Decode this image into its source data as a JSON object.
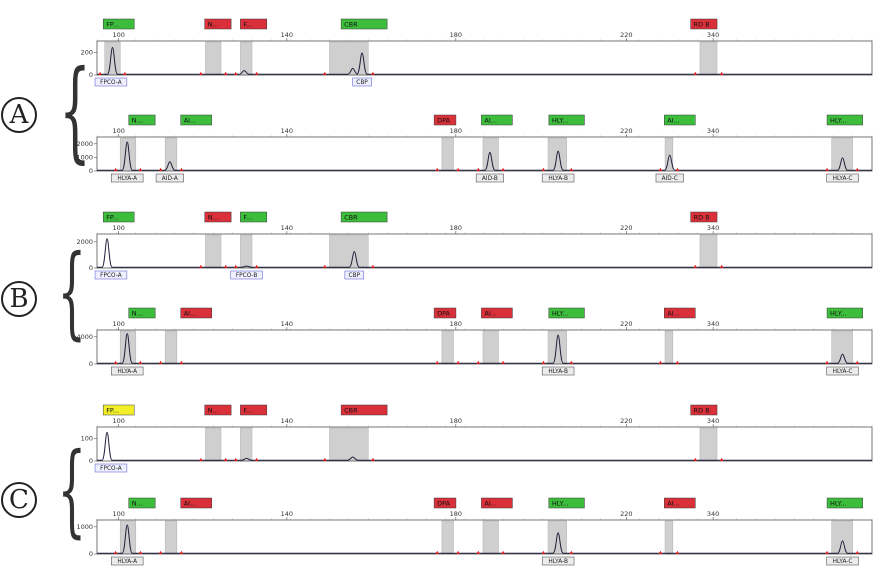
{
  "group_labels": [
    "A",
    "B",
    "C"
  ],
  "axis_ticks": [
    "100",
    "140",
    "180",
    "220",
    "340"
  ],
  "colors": {
    "green": "#3cbd3c",
    "red": "#d9303a",
    "yellow": "#f2ee2a",
    "trace": "#1f1f3a",
    "bin": "#cfcfcf",
    "peak_marker": "#e02020",
    "axis": "#555555"
  },
  "chart_data": [
    {
      "type": "line",
      "group": "A",
      "panel": "upper",
      "x_ticks": [
        "100",
        "140",
        "180",
        "220",
        "340"
      ],
      "y_ticks": [
        "200",
        "0"
      ],
      "ylim": [
        0,
        300
      ],
      "markers": [
        {
          "label": "FP...",
          "color": "green",
          "pos": 0.8
        },
        {
          "label": "N...",
          "color": "red",
          "pos": 13.9
        },
        {
          "label": "F...",
          "color": "red",
          "pos": 18.5
        },
        {
          "label": "CBR",
          "color": "green",
          "pos": 31.5
        },
        {
          "label": "RD B",
          "color": "red",
          "pos": 76.6
        }
      ],
      "bins": [
        [
          1,
          3
        ],
        [
          14,
          16
        ],
        [
          18.5,
          20
        ],
        [
          30,
          35
        ],
        [
          77.8,
          80
        ]
      ],
      "peaks": [
        {
          "pos": 2,
          "height": 250
        },
        {
          "pos": 19,
          "height": 40
        },
        {
          "pos": 33,
          "height": 60
        },
        {
          "pos": 34.2,
          "height": 200
        }
      ],
      "calls": [
        {
          "label": "FPCO-A",
          "pos": 1.8,
          "style": "blue"
        },
        {
          "label": "CBP",
          "pos": 34.2,
          "style": "blue"
        }
      ]
    },
    {
      "type": "line",
      "group": "A",
      "panel": "lower",
      "x_ticks": [
        "100",
        "140",
        "180",
        "220",
        "340"
      ],
      "y_ticks": [
        "2000",
        "1000",
        "0"
      ],
      "ylim": [
        0,
        2500
      ],
      "markers": [
        {
          "label": "N...",
          "color": "green",
          "pos": 4.1
        },
        {
          "label": "AI...",
          "color": "green",
          "pos": 10.8
        },
        {
          "label": "DPA",
          "color": "red",
          "pos": 43.5
        },
        {
          "label": "AI...",
          "color": "green",
          "pos": 49.6
        },
        {
          "label": "HLY...",
          "color": "green",
          "pos": 58.3
        },
        {
          "label": "AI...",
          "color": "green",
          "pos": 73.2
        },
        {
          "label": "HLY...",
          "color": "green",
          "pos": 94.2
        }
      ],
      "bins": [
        [
          3,
          5
        ],
        [
          8.8,
          10.3
        ],
        [
          44.5,
          46
        ],
        [
          49.8,
          51.8
        ],
        [
          58.2,
          60.6
        ],
        [
          73.3,
          74.3
        ],
        [
          94.8,
          97.5
        ]
      ],
      "peaks": [
        {
          "pos": 3.9,
          "height": 2200
        },
        {
          "pos": 9.4,
          "height": 700
        },
        {
          "pos": 50.7,
          "height": 1400
        },
        {
          "pos": 59.5,
          "height": 1500
        },
        {
          "pos": 73.9,
          "height": 1200
        },
        {
          "pos": 96.2,
          "height": 1000
        }
      ],
      "calls": [
        {
          "label": "HLYA-A",
          "pos": 3.9,
          "style": "gray"
        },
        {
          "label": "AID-A",
          "pos": 9.4,
          "style": "gray"
        },
        {
          "label": "AID-B",
          "pos": 50.7,
          "style": "gray"
        },
        {
          "label": "HLYA-B",
          "pos": 59.5,
          "style": "gray"
        },
        {
          "label": "AID-C",
          "pos": 73.9,
          "style": "gray"
        },
        {
          "label": "HLYA-C",
          "pos": 96.2,
          "style": "gray"
        }
      ]
    },
    {
      "type": "line",
      "group": "B",
      "panel": "upper",
      "x_ticks": [
        "100",
        "140",
        "180",
        "220",
        "340"
      ],
      "y_ticks": [
        "2000",
        "0"
      ],
      "ylim": [
        0,
        2600
      ],
      "markers": [
        {
          "label": "FP...",
          "color": "green",
          "pos": 0.8
        },
        {
          "label": "N...",
          "color": "red",
          "pos": 13.9
        },
        {
          "label": "F...",
          "color": "green",
          "pos": 18.5
        },
        {
          "label": "CBR",
          "color": "green",
          "pos": 31.5
        },
        {
          "label": "RD B",
          "color": "red",
          "pos": 76.6
        }
      ],
      "bins": [
        [
          14,
          16
        ],
        [
          18.5,
          20
        ],
        [
          30,
          35
        ],
        [
          77.8,
          80
        ]
      ],
      "peaks": [
        {
          "pos": 1.3,
          "height": 2300
        },
        {
          "pos": 19.3,
          "height": 150
        },
        {
          "pos": 33.2,
          "height": 1300
        }
      ],
      "calls": [
        {
          "label": "FPCO-A",
          "pos": 1.8,
          "style": "blue"
        },
        {
          "label": "FPCO-B",
          "pos": 19.3,
          "style": "blue"
        },
        {
          "label": "CBP",
          "pos": 33.2,
          "style": "blue"
        }
      ]
    },
    {
      "type": "line",
      "group": "B",
      "panel": "lower",
      "x_ticks": [
        "100",
        "140",
        "180",
        "220",
        "340"
      ],
      "y_ticks": [
        "4000",
        "0"
      ],
      "ylim": [
        0,
        5000
      ],
      "markers": [
        {
          "label": "N...",
          "color": "green",
          "pos": 4.1
        },
        {
          "label": "AI...",
          "color": "red",
          "pos": 10.8
        },
        {
          "label": "DPA",
          "color": "red",
          "pos": 43.5
        },
        {
          "label": "AI...",
          "color": "red",
          "pos": 49.6
        },
        {
          "label": "HLY...",
          "color": "green",
          "pos": 58.3
        },
        {
          "label": "AI...",
          "color": "red",
          "pos": 73.2
        },
        {
          "label": "HLY...",
          "color": "green",
          "pos": 94.2
        }
      ],
      "bins": [
        [
          3,
          5
        ],
        [
          8.8,
          10.3
        ],
        [
          44.5,
          46
        ],
        [
          49.8,
          51.8
        ],
        [
          58.2,
          60.6
        ],
        [
          73.3,
          74.3
        ],
        [
          94.8,
          97.5
        ]
      ],
      "peaks": [
        {
          "pos": 3.9,
          "height": 4600
        },
        {
          "pos": 59.5,
          "height": 4400
        },
        {
          "pos": 96.2,
          "height": 1500
        }
      ],
      "calls": [
        {
          "label": "HLYA-A",
          "pos": 3.9,
          "style": "gray"
        },
        {
          "label": "HLYA-B",
          "pos": 59.5,
          "style": "gray"
        },
        {
          "label": "HLYA-C",
          "pos": 96.2,
          "style": "gray"
        }
      ]
    },
    {
      "type": "line",
      "group": "C",
      "panel": "upper",
      "x_ticks": [
        "100",
        "140",
        "180",
        "220",
        "340"
      ],
      "y_ticks": [
        "100",
        "0"
      ],
      "ylim": [
        0,
        150
      ],
      "markers": [
        {
          "label": "FP...",
          "color": "yellow",
          "pos": 0.8
        },
        {
          "label": "N...",
          "color": "red",
          "pos": 13.9
        },
        {
          "label": "F...",
          "color": "red",
          "pos": 18.5
        },
        {
          "label": "CBR",
          "color": "red",
          "pos": 31.5
        },
        {
          "label": "RD B",
          "color": "red",
          "pos": 76.6
        }
      ],
      "bins": [
        [
          14,
          16
        ],
        [
          18.5,
          20
        ],
        [
          30,
          35
        ],
        [
          77.8,
          80
        ]
      ],
      "peaks": [
        {
          "pos": 1.3,
          "height": 130
        },
        {
          "pos": 19.3,
          "height": 12
        },
        {
          "pos": 33,
          "height": 18
        }
      ],
      "calls": [
        {
          "label": "FPCO-A",
          "pos": 1.8,
          "style": "blue"
        }
      ]
    },
    {
      "type": "line",
      "group": "C",
      "panel": "lower",
      "x_ticks": [
        "100",
        "140",
        "180",
        "220",
        "340"
      ],
      "y_ticks": [
        "1000",
        "0"
      ],
      "ylim": [
        0,
        1250
      ],
      "markers": [
        {
          "label": "N...",
          "color": "green",
          "pos": 4.1
        },
        {
          "label": "AI...",
          "color": "red",
          "pos": 10.8
        },
        {
          "label": "DPA",
          "color": "red",
          "pos": 43.5
        },
        {
          "label": "AI...",
          "color": "red",
          "pos": 49.6
        },
        {
          "label": "HLY...",
          "color": "green",
          "pos": 58.3
        },
        {
          "label": "AI...",
          "color": "red",
          "pos": 73.2
        },
        {
          "label": "HLY...",
          "color": "green",
          "pos": 94.2
        }
      ],
      "bins": [
        [
          3,
          5
        ],
        [
          8.8,
          10.3
        ],
        [
          44.5,
          46
        ],
        [
          49.8,
          51.8
        ],
        [
          58.2,
          60.6
        ],
        [
          73.3,
          74.3
        ],
        [
          94.8,
          97.5
        ]
      ],
      "peaks": [
        {
          "pos": 3.9,
          "height": 1100
        },
        {
          "pos": 59.5,
          "height": 800
        },
        {
          "pos": 96.2,
          "height": 500
        }
      ],
      "calls": [
        {
          "label": "HLYA-A",
          "pos": 3.9,
          "style": "gray"
        },
        {
          "label": "HLYA-B",
          "pos": 59.5,
          "style": "gray"
        },
        {
          "label": "HLYA-C",
          "pos": 96.2,
          "style": "gray"
        }
      ]
    }
  ]
}
